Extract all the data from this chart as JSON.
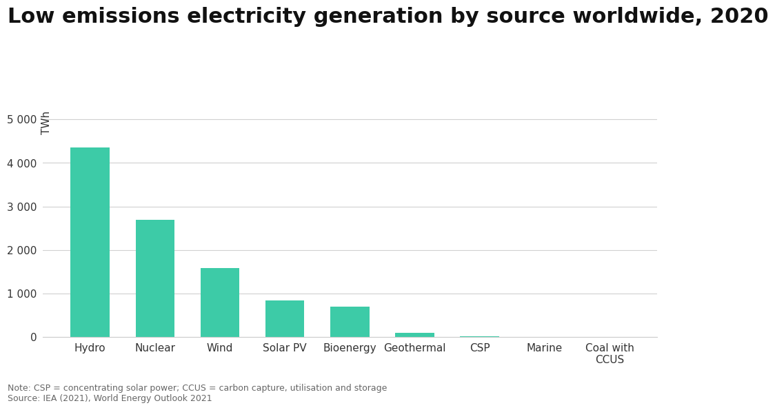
{
  "title": "Low emissions electricity generation by source worldwide, 2020",
  "categories": [
    "Hydro",
    "Nuclear",
    "Wind",
    "Solar PV",
    "Bioenergy",
    "Geothermal",
    "CSP",
    "Marine",
    "Coal with\nCCUS"
  ],
  "values": [
    4350,
    2700,
    1590,
    840,
    700,
    95,
    14,
    2,
    2
  ],
  "bar_color": "#3dcba7",
  "ylabel": "TWh",
  "ylim": [
    0,
    5500
  ],
  "yticks": [
    0,
    1000,
    2000,
    3000,
    4000,
    5000
  ],
  "ytick_labels": [
    "0",
    "1 000",
    "2 000",
    "3 000",
    "4 000",
    "5 000"
  ],
  "background_color": "#ffffff",
  "note_line1": "Note: CSP = concentrating solar power; CCUS = carbon capture, utilisation and storage",
  "note_line2": "Source: IEA (2021), World Energy Outlook 2021",
  "title_fontsize": 22,
  "axis_fontsize": 11,
  "note_fontsize": 9
}
